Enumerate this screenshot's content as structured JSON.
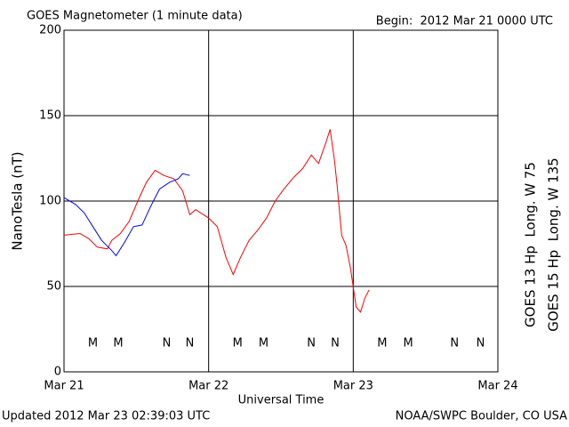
{
  "chart_data": {
    "type": "line",
    "title": "GOES Magnetometer (1 minute data)",
    "subtitle": "Begin:  2012 Mar 21 0000 UTC",
    "xlabel": "Universal Time",
    "ylabel": "NanoTesla (nT)",
    "footer_left": "Updated 2012 Mar 23 02:39:03 UTC",
    "footer_right": "NOAA/SWPC Boulder, CO USA",
    "xlim": [
      0,
      3
    ],
    "xticks": [
      {
        "value": 0,
        "label": "Mar 21"
      },
      {
        "value": 1,
        "label": "Mar 22"
      },
      {
        "value": 2,
        "label": "Mar 23"
      },
      {
        "value": 3,
        "label": "Mar 24"
      }
    ],
    "ylim": [
      0,
      200
    ],
    "yticks": [
      0,
      50,
      100,
      150,
      200
    ],
    "grid": true,
    "series": [
      {
        "name": "GOES 13 Hp  Long. W 75",
        "color": "#ff0000",
        "x": [
          0,
          0.11,
          0.17,
          0.23,
          0.3,
          0.33,
          0.39,
          0.45,
          0.51,
          0.57,
          0.63,
          0.69,
          0.76,
          0.82,
          0.87,
          0.91,
          1.0,
          1.06,
          1.12,
          1.17,
          1.22,
          1.28,
          1.34,
          1.4,
          1.46,
          1.52,
          1.59,
          1.65,
          1.71,
          1.76,
          1.81,
          1.84,
          1.87,
          1.89,
          1.92,
          1.95,
          1.98,
          2.02,
          2.05,
          2.08,
          2.11
        ],
        "values": [
          80,
          81,
          78,
          73,
          72,
          77,
          81,
          88,
          100,
          111,
          118,
          115,
          113,
          106,
          92,
          95,
          90,
          85,
          67,
          57,
          67,
          77,
          83,
          90,
          100,
          107,
          114,
          119,
          127,
          122,
          134,
          142,
          124,
          108,
          80,
          74,
          61,
          38,
          35,
          43,
          48
        ]
      },
      {
        "name": "GOES 15 Hp  Long. W 135",
        "color": "#0000ff",
        "x": [
          0,
          0.08,
          0.14,
          0.2,
          0.26,
          0.33,
          0.36,
          0.42,
          0.48,
          0.54,
          0.6,
          0.66,
          0.73,
          0.79,
          0.82,
          0.87
        ],
        "values": [
          102,
          98,
          93,
          85,
          77,
          71,
          68,
          76,
          85,
          86,
          97,
          107,
          111,
          113,
          116,
          115
        ]
      }
    ],
    "markers": [
      {
        "x": 0.2,
        "text": "M",
        "color": "#ff0000"
      },
      {
        "x": 0.375,
        "text": "M",
        "color": "#0000ff"
      },
      {
        "x": 0.71,
        "text": "N",
        "color": "#ff0000"
      },
      {
        "x": 0.87,
        "text": "N",
        "color": "#0000ff"
      },
      {
        "x": 1.2,
        "text": "M",
        "color": "#ff0000"
      },
      {
        "x": 1.38,
        "text": "M",
        "color": "#0000ff"
      },
      {
        "x": 1.71,
        "text": "N",
        "color": "#ff0000"
      },
      {
        "x": 1.875,
        "text": "N",
        "color": "#0000ff"
      },
      {
        "x": 2.2,
        "text": "M",
        "color": "#ff0000"
      },
      {
        "x": 2.38,
        "text": "M",
        "color": "#0000ff"
      },
      {
        "x": 2.7,
        "text": "N",
        "color": "#ff0000"
      },
      {
        "x": 2.88,
        "text": "N",
        "color": "#0000ff"
      }
    ]
  }
}
